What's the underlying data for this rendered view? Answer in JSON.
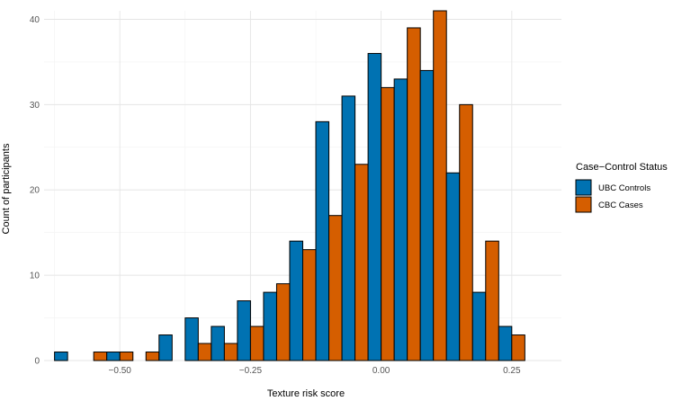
{
  "chart_data": {
    "type": "bar",
    "xlabel": "Texture risk score",
    "ylabel": "Count of participants",
    "x_ticks": [
      -0.5,
      -0.25,
      0.0,
      0.25
    ],
    "x_tick_labels": [
      "-0.50",
      "-0.25",
      "0.00",
      "0.25"
    ],
    "y_ticks": [
      0,
      10,
      20,
      30,
      40
    ],
    "y_tick_labels": [
      "0",
      "10",
      "20",
      "30",
      "40"
    ],
    "xlim": [
      -0.645,
      0.345
    ],
    "ylim": [
      0,
      41
    ],
    "bin_width": 0.05,
    "grid": true,
    "legend": {
      "title": "Case−Control Status",
      "placement": "right"
    },
    "bin_centers": [
      -0.6,
      -0.55,
      -0.5,
      -0.45,
      -0.4,
      -0.35,
      -0.3,
      -0.25,
      -0.2,
      -0.15,
      -0.1,
      -0.05,
      0.0,
      0.05,
      0.1,
      0.15,
      0.2,
      0.25
    ],
    "series": [
      {
        "name": "UBC Controls",
        "color": "#0072B2",
        "values": [
          1,
          0,
          1,
          0,
          3,
          5,
          4,
          7,
          8,
          14,
          28,
          31,
          36,
          33,
          34,
          22,
          8,
          4
        ]
      },
      {
        "name": "CBC Cases",
        "color": "#D55E00",
        "values": [
          0,
          1,
          1,
          1,
          0,
          2,
          2,
          4,
          9,
          13,
          17,
          23,
          32,
          39,
          41,
          30,
          14,
          3
        ]
      }
    ]
  }
}
